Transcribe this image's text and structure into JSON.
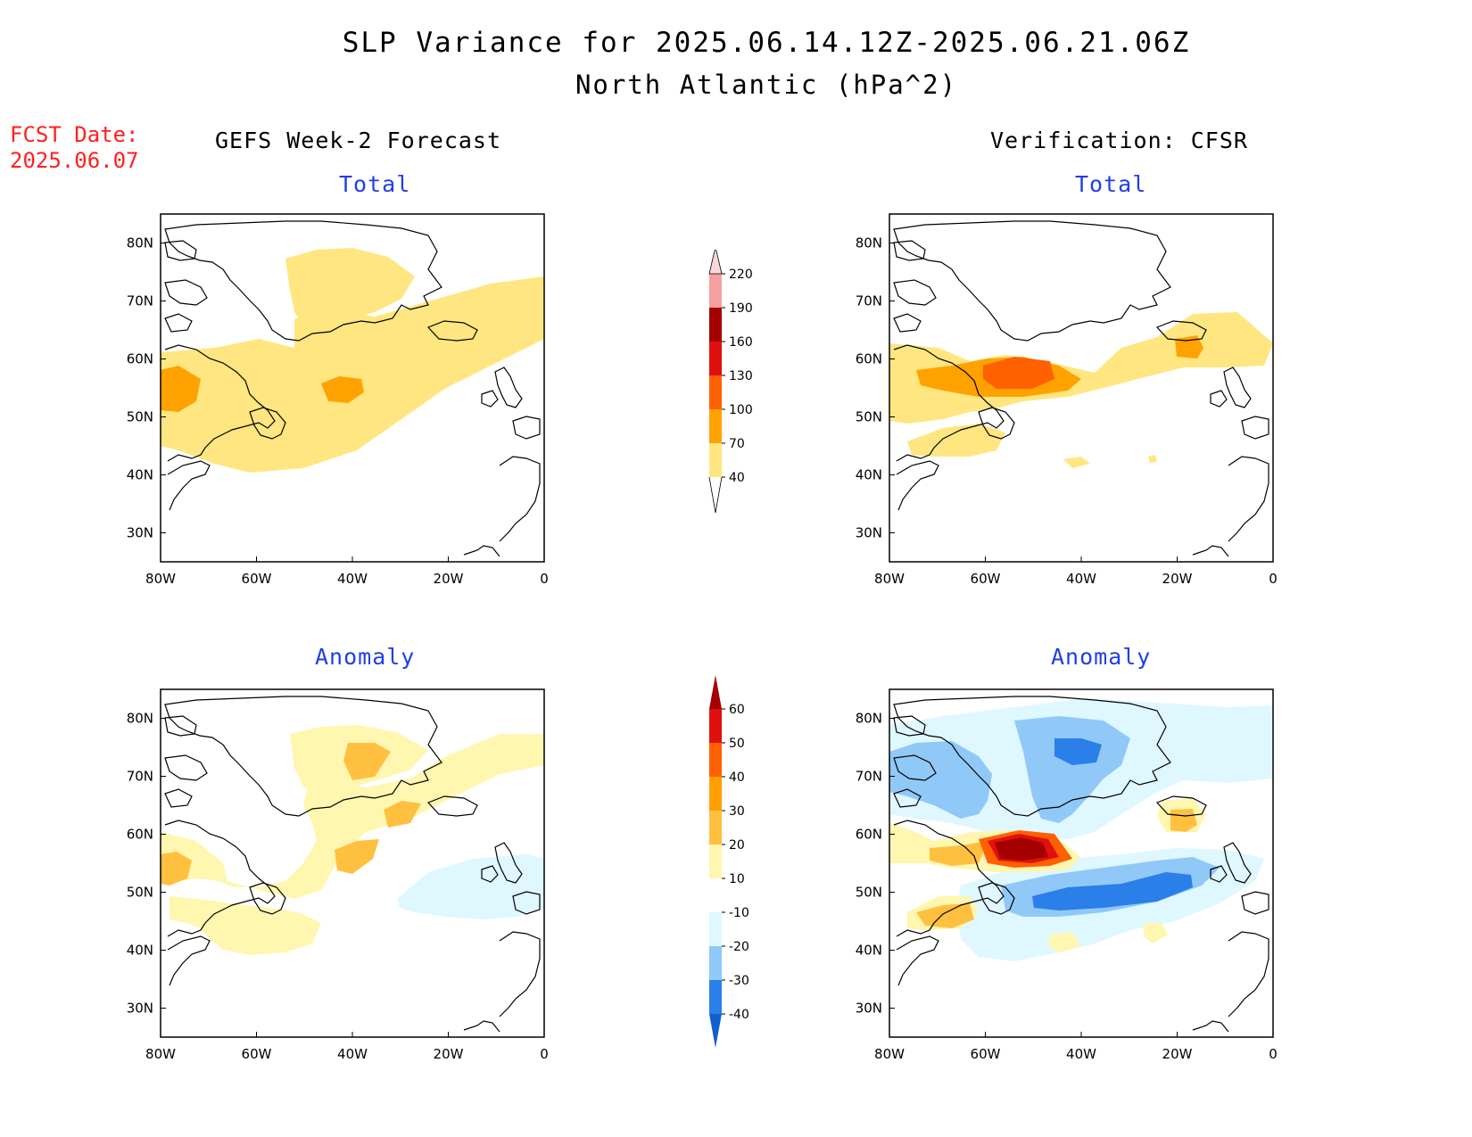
{
  "title": {
    "line1": "SLP Variance for 2025.06.14.12Z-2025.06.21.06Z",
    "line2": "North Atlantic (hPa^2)"
  },
  "forecast_date": {
    "label": "FCST Date:",
    "value": "2025.06.07"
  },
  "columns": {
    "left": "GEFS Week-2 Forecast",
    "right": "Verification: CFSR"
  },
  "panels": {
    "top_left": "Total",
    "top_right": "Total",
    "bottom_left": "Anomaly",
    "bottom_right": "Anomaly"
  },
  "axes": {
    "lat_ticks": [
      "80N",
      "70N",
      "60N",
      "50N",
      "40N",
      "30N"
    ],
    "lon_ticks": [
      "80W",
      "60W",
      "40W",
      "20W",
      "0"
    ],
    "lon_range": [
      -80,
      0
    ],
    "lat_range": [
      25,
      85
    ]
  },
  "colorbars": {
    "total": {
      "levels": [
        "40",
        "70",
        "100",
        "130",
        "160",
        "190",
        "220"
      ],
      "colors": [
        "#ffe680",
        "#ffa200",
        "#ff6000",
        "#e01010",
        "#a50000",
        "#f5a0a0",
        "#fbd8d8"
      ]
    },
    "anomaly": {
      "levels": [
        "-40",
        "-30",
        "-20",
        "-10",
        "10",
        "20",
        "30",
        "40",
        "50",
        "60"
      ],
      "colors": [
        "#1060d0",
        "#2a7fe8",
        "#90c8f8",
        "#dff7ff",
        "#ffffff",
        "#fff6b0",
        "#ffc040",
        "#ffa000",
        "#ff6000",
        "#e01010",
        "#a50000"
      ]
    }
  }
}
